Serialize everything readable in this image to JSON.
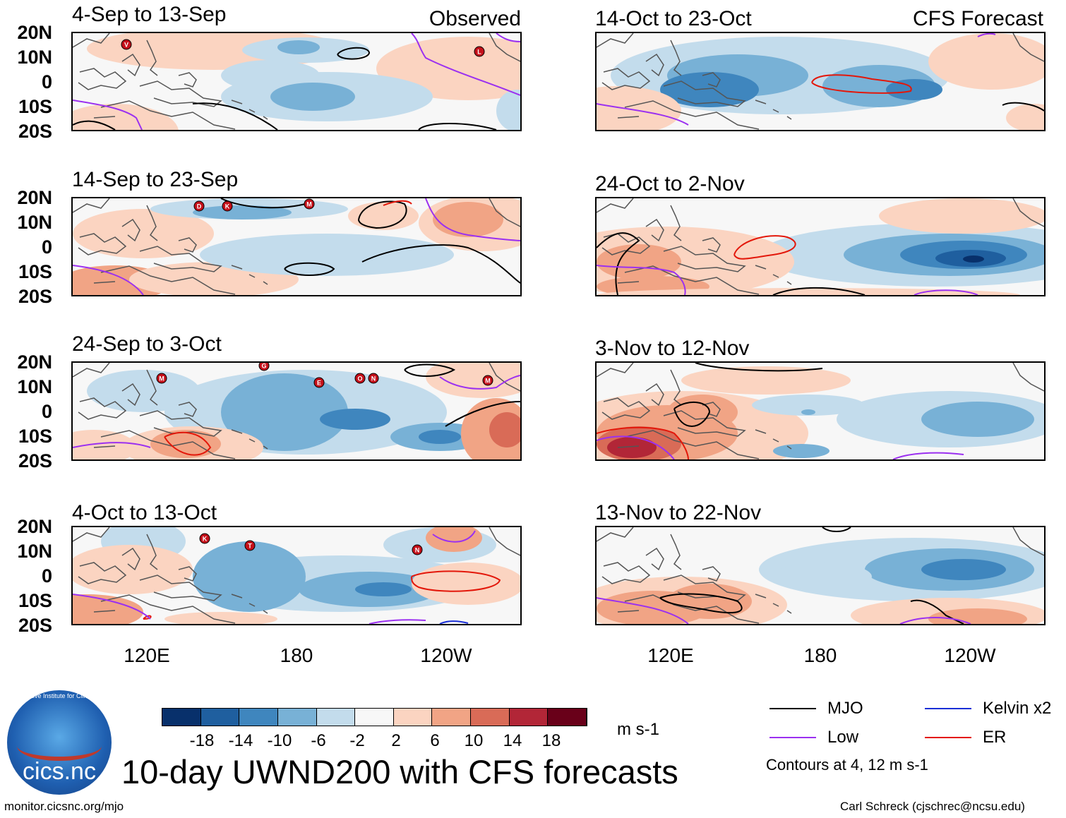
{
  "colors": {
    "neg18": "#08306b",
    "neg14": "#1f5f9f",
    "neg10": "#3f86be",
    "neg6": "#78b1d6",
    "neg2": "#c3dcec",
    "zero": "#f7f7f7",
    "pos2": "#fbd4c1",
    "pos6": "#f1a485",
    "pos10": "#d96b57",
    "pos14": "#b22637",
    "pos18": "#690019",
    "mjo": "#000000",
    "low": "#9b30f0",
    "kelvin": "#1a2fd6",
    "er": "#e3170a"
  },
  "observed_label": "Observed",
  "forecast_label": "CFS Forecast",
  "y_axis_labels": [
    "20N",
    "10N",
    "0",
    "10S",
    "20S"
  ],
  "x_axis_labels": [
    "120E",
    "180",
    "120W"
  ],
  "panels": [
    {
      "title": "4-Sep to 13-Sep"
    },
    {
      "title": "14-Sep to 23-Sep"
    },
    {
      "title": "24-Sep to 3-Oct"
    },
    {
      "title": "4-Oct to 13-Oct"
    },
    {
      "title": "14-Oct to 23-Oct"
    },
    {
      "title": "24-Oct to 2-Nov"
    },
    {
      "title": "3-Nov to 12-Nov"
    },
    {
      "title": "13-Nov to 22-Nov"
    }
  ],
  "storm_markers": [
    {
      "panel": 0,
      "letter": "V"
    },
    {
      "panel": 0,
      "letter": "L"
    },
    {
      "panel": 1,
      "letter": "D"
    },
    {
      "panel": 1,
      "letter": "K"
    },
    {
      "panel": 1,
      "letter": "M"
    },
    {
      "panel": 2,
      "letter": "M"
    },
    {
      "panel": 2,
      "letter": "G"
    },
    {
      "panel": 2,
      "letter": "E"
    },
    {
      "panel": 2,
      "letter": "O"
    },
    {
      "panel": 2,
      "letter": "N"
    },
    {
      "panel": 2,
      "letter": "M"
    },
    {
      "panel": 3,
      "letter": "K"
    },
    {
      "panel": 3,
      "letter": "T"
    },
    {
      "panel": 3,
      "letter": "N"
    }
  ],
  "colorbar": {
    "tick_labels": [
      "-18",
      "-14",
      "-10",
      "-6",
      "-2",
      "2",
      "6",
      "10",
      "14",
      "18"
    ],
    "units": "m s-1"
  },
  "main_title": "10-day UWND200 with CFS forecasts",
  "legend": {
    "mjo": "MJO",
    "low": "Low",
    "kelvin": "Kelvin x2",
    "er": "ER",
    "contours_note": "Contours at 4, 12 m s-1"
  },
  "logo_text": "cics.nc",
  "logo_ring_text": "Cooperative Institute for Climate and Satellites",
  "footer_left": "monitor.cicsnc.org/mjo",
  "footer_right": "Carl Schreck (cjschrec@ncsu.edu)"
}
